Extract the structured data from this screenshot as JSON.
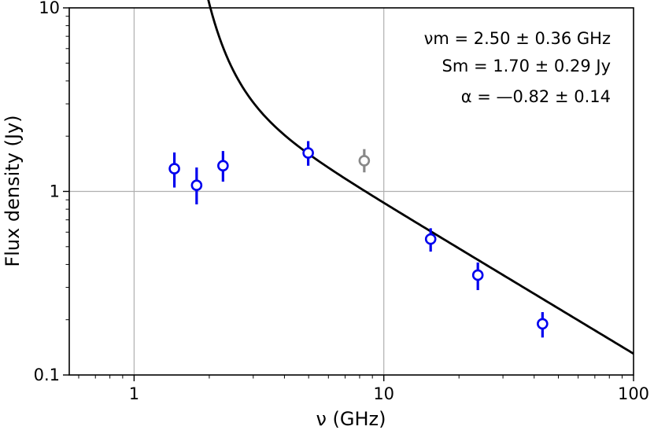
{
  "chart_data": {
    "type": "scatter",
    "xlabel": "ν (GHz)",
    "ylabel": "Flux density (Jy)",
    "xscale": "log",
    "yscale": "log",
    "xlim": [
      0.55,
      100
    ],
    "ylim": [
      0.1,
      10
    ],
    "xticks": [
      {
        "value": 1,
        "label": "1"
      },
      {
        "value": 10,
        "label": "10"
      },
      {
        "value": 100,
        "label": "100"
      }
    ],
    "yticks": [
      {
        "value": 0.1,
        "label": "0.1"
      },
      {
        "value": 1,
        "label": "1"
      },
      {
        "value": 10,
        "label": "10"
      }
    ],
    "grid": true,
    "annotations": [
      "νm = 2.50 ± 0.36 GHz",
      "Sm = 1.70 ± 0.29 Jy",
      "α = —0.82 ± 0.14"
    ],
    "series": [
      {
        "kind": "points",
        "color": "#0000ee",
        "points": [
          {
            "x": 1.45,
            "y": 1.33,
            "lo": 1.05,
            "hi": 1.63
          },
          {
            "x": 1.78,
            "y": 1.08,
            "lo": 0.85,
            "hi": 1.35
          },
          {
            "x": 2.27,
            "y": 1.38,
            "lo": 1.13,
            "hi": 1.66
          },
          {
            "x": 4.98,
            "y": 1.62,
            "lo": 1.38,
            "hi": 1.88
          },
          {
            "x": 15.4,
            "y": 0.55,
            "lo": 0.47,
            "hi": 0.63
          },
          {
            "x": 23.8,
            "y": 0.35,
            "lo": 0.29,
            "hi": 0.41
          },
          {
            "x": 43.2,
            "y": 0.19,
            "lo": 0.16,
            "hi": 0.22
          }
        ]
      },
      {
        "kind": "points",
        "color": "#888888",
        "points": [
          {
            "x": 8.35,
            "y": 1.47,
            "lo": 1.27,
            "hi": 1.7
          }
        ]
      },
      {
        "kind": "fit",
        "color": "#000000",
        "model": "peaked",
        "peak_freq": 2.5,
        "peak_flux": 1.7,
        "alpha": -0.82,
        "xrange": [
          0.58,
          100
        ]
      }
    ]
  }
}
